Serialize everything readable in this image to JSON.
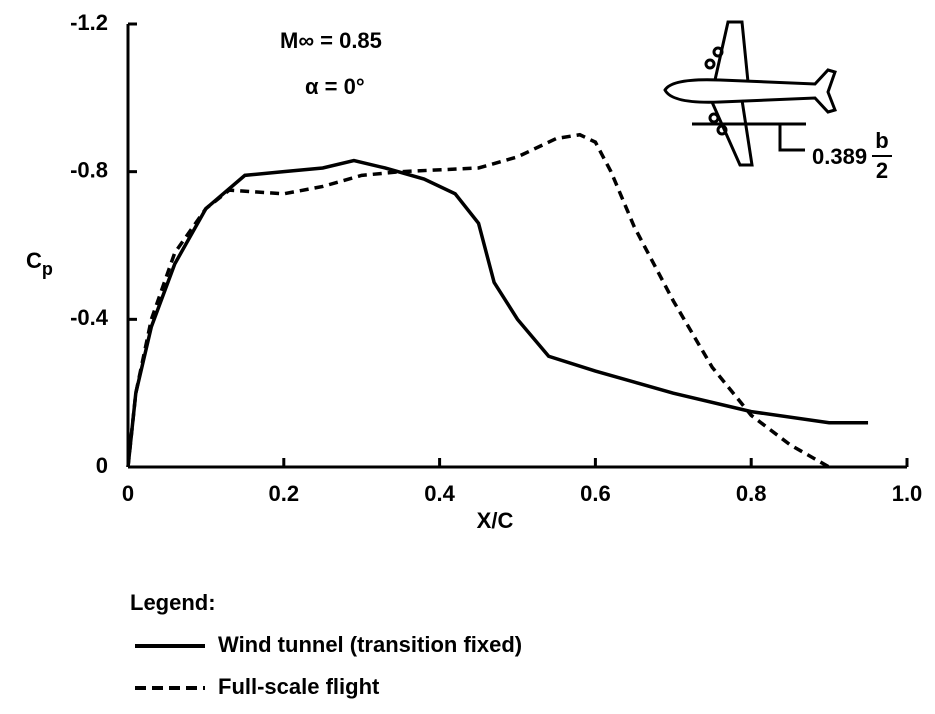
{
  "chart_data": {
    "type": "line",
    "annotations": [
      "M∞ = 0.85",
      "α = 0°"
    ],
    "station_label": {
      "value": "0.389",
      "numerator": "b",
      "denominator": "2"
    },
    "x_label": "X/C",
    "y_label": {
      "main": "C",
      "sub": "p"
    },
    "xlim": [
      0,
      1
    ],
    "ylim": [
      0,
      -1.2
    ],
    "xticks": [
      0,
      0.2,
      0.4,
      0.6,
      0.8,
      {
        "value": 1,
        "label": "1.0"
      }
    ],
    "yticks": [
      0,
      -0.4,
      -0.8,
      -1.2
    ],
    "legend_title": "Legend:",
    "series": [
      {
        "name": "Wind tunnel (transition fixed)",
        "color": "#000000",
        "style": "solid",
        "x": [
          0,
          0.01,
          0.03,
          0.06,
          0.1,
          0.15,
          0.2,
          0.25,
          0.29,
          0.33,
          0.38,
          0.42,
          0.45,
          0.47,
          0.5,
          0.54,
          0.6,
          0.7,
          0.8,
          0.9,
          0.95
        ],
        "values": [
          0,
          -0.2,
          -0.38,
          -0.55,
          -0.7,
          -0.79,
          -0.8,
          -0.81,
          -0.83,
          -0.81,
          -0.78,
          -0.74,
          -0.66,
          -0.5,
          -0.4,
          -0.3,
          -0.26,
          -0.2,
          -0.15,
          -0.12,
          -0.12
        ]
      },
      {
        "name": "Full-scale flight",
        "color": "#000000",
        "style": "dashed",
        "x": [
          0,
          0.01,
          0.03,
          0.06,
          0.1,
          0.13,
          0.2,
          0.25,
          0.3,
          0.35,
          0.45,
          0.5,
          0.55,
          0.58,
          0.6,
          0.62,
          0.65,
          0.7,
          0.75,
          0.8,
          0.85,
          0.9
        ],
        "values": [
          0,
          -0.2,
          -0.4,
          -0.58,
          -0.7,
          -0.75,
          -0.74,
          -0.76,
          -0.79,
          -0.8,
          -0.81,
          -0.84,
          -0.89,
          -0.9,
          -0.88,
          -0.8,
          -0.65,
          -0.45,
          -0.27,
          -0.14,
          -0.06,
          0
        ]
      }
    ]
  }
}
